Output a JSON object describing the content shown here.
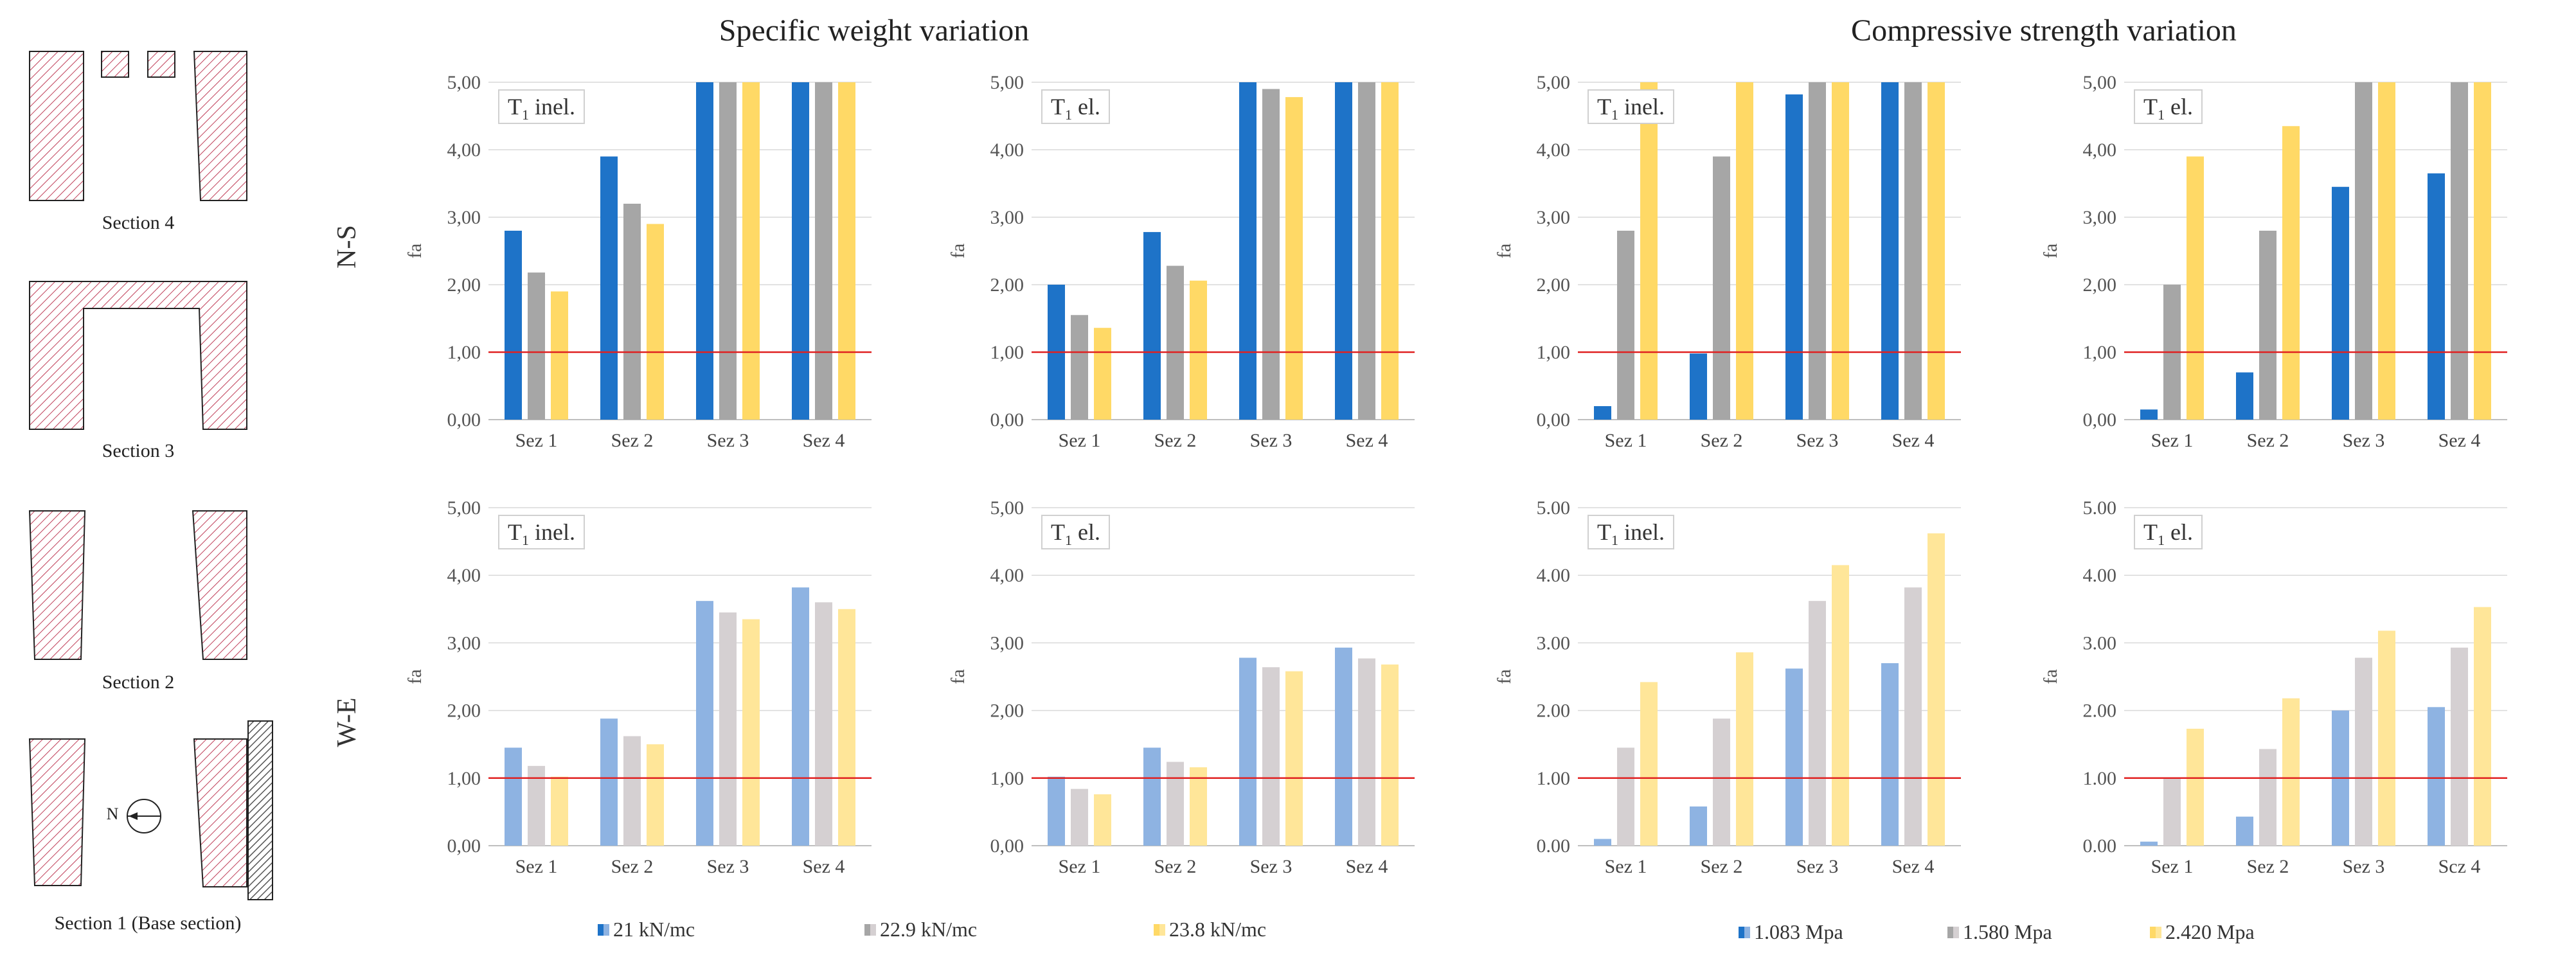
{
  "group_titles": {
    "left": "Specific weight variation",
    "right": "Compressive strength variation"
  },
  "row_labels": {
    "top": "N-S",
    "bottom": "W-E"
  },
  "section_labels": [
    "Section 4",
    "Section 3",
    "Section 2",
    "Section 1 (Base section)"
  ],
  "compass_letter": "N",
  "legends": {
    "weight": [
      "21 kN/mc",
      "22.9 kN/mc",
      "23.8 kN/mc"
    ],
    "strength": [
      "1.083 Mpa",
      "1.580 Mpa",
      "2.420 Mpa"
    ]
  },
  "colors": {
    "ns": [
      "#1e73c8",
      "#a6a6a6",
      "#ffd966"
    ],
    "we": [
      "#8eb3e2",
      "#d5d0d2",
      "#ffe699"
    ],
    "threshold": "#e02020",
    "hatch": "#c0405a"
  },
  "chart_data": [
    {
      "type": "bar",
      "panel": "ns-weight-inel",
      "tag_main": "T",
      "tag_sub": "1",
      "tag_rest": " inel.",
      "ylabel": "fa",
      "ylim": [
        0,
        5
      ],
      "yticks": [
        "0,00",
        "1,00",
        "2,00",
        "3,00",
        "4,00",
        "5,00"
      ],
      "categories": [
        "Sez 1",
        "Sez 2",
        "Sez 3",
        "Sez 4"
      ],
      "threshold": 1,
      "series": [
        {
          "name": "21 kN/mc",
          "values": [
            2.8,
            3.9,
            5.0,
            5.0
          ]
        },
        {
          "name": "22.9 kN/mc",
          "values": [
            2.18,
            3.2,
            5.0,
            5.0
          ]
        },
        {
          "name": "23.8 kN/mc",
          "values": [
            1.9,
            2.9,
            5.0,
            5.0
          ]
        }
      ]
    },
    {
      "type": "bar",
      "panel": "ns-weight-el",
      "tag_main": "T",
      "tag_sub": "1",
      "tag_rest": " el.",
      "ylabel": "fa",
      "ylim": [
        0,
        5
      ],
      "yticks": [
        "0,00",
        "1,00",
        "2,00",
        "3,00",
        "4,00",
        "5,00"
      ],
      "categories": [
        "Sez 1",
        "Sez 2",
        "Sez 3",
        "Sez 4"
      ],
      "threshold": 1,
      "series": [
        {
          "name": "21 kN/mc",
          "values": [
            2.0,
            2.78,
            5.0,
            5.0
          ]
        },
        {
          "name": "22.9 kN/mc",
          "values": [
            1.55,
            2.28,
            4.9,
            5.0
          ]
        },
        {
          "name": "23.8 kN/mc",
          "values": [
            1.36,
            2.06,
            4.78,
            5.0
          ]
        }
      ]
    },
    {
      "type": "bar",
      "panel": "ns-strength-inel",
      "tag_main": "T",
      "tag_sub": "1",
      "tag_rest": " inel.",
      "ylabel": "fa",
      "ylim": [
        0,
        5
      ],
      "yticks": [
        "0,00",
        "1,00",
        "2,00",
        "3,00",
        "4,00",
        "5,00"
      ],
      "categories": [
        "Sez 1",
        "Sez 2",
        "Sez 3",
        "Sez 4"
      ],
      "threshold": 1,
      "series": [
        {
          "name": "1.083 Mpa",
          "values": [
            0.2,
            0.98,
            4.82,
            5.0
          ]
        },
        {
          "name": "1.580 Mpa",
          "values": [
            2.8,
            3.9,
            5.0,
            5.0
          ]
        },
        {
          "name": "2.420 Mpa",
          "values": [
            5.0,
            5.0,
            5.0,
            5.0
          ]
        }
      ]
    },
    {
      "type": "bar",
      "panel": "ns-strength-el",
      "tag_main": "T",
      "tag_sub": "1",
      "tag_rest": " el.",
      "ylabel": "fa",
      "ylim": [
        0,
        5
      ],
      "yticks": [
        "0,00",
        "1,00",
        "2,00",
        "3,00",
        "4,00",
        "5,00"
      ],
      "categories": [
        "Sez 1",
        "Sez 2",
        "Sez 3",
        "Sez 4"
      ],
      "threshold": 1,
      "series": [
        {
          "name": "1.083 Mpa",
          "values": [
            0.15,
            0.7,
            3.45,
            3.65
          ]
        },
        {
          "name": "1.580 Mpa",
          "values": [
            2.0,
            2.8,
            5.0,
            5.0
          ]
        },
        {
          "name": "2.420 Mpa",
          "values": [
            3.9,
            4.35,
            5.0,
            5.0
          ]
        }
      ]
    },
    {
      "type": "bar",
      "panel": "we-weight-inel",
      "tag_main": "T",
      "tag_sub": "1",
      "tag_rest": " inel.",
      "ylabel": "fa",
      "ylim": [
        0,
        5
      ],
      "yticks": [
        "0,00",
        "1,00",
        "2,00",
        "3,00",
        "4,00",
        "5,00"
      ],
      "categories": [
        "Sez 1",
        "Sez 2",
        "Sez 3",
        "Sez 4"
      ],
      "threshold": 1,
      "series": [
        {
          "name": "21 kN/mc",
          "values": [
            1.45,
            1.88,
            3.62,
            3.82
          ]
        },
        {
          "name": "22.9 kN/mc",
          "values": [
            1.18,
            1.62,
            3.45,
            3.6
          ]
        },
        {
          "name": "23.8 kN/mc",
          "values": [
            1.02,
            1.5,
            3.35,
            3.5
          ]
        }
      ]
    },
    {
      "type": "bar",
      "panel": "we-weight-el",
      "tag_main": "T",
      "tag_sub": "1",
      "tag_rest": " el.",
      "ylabel": "fa",
      "ylim": [
        0,
        5
      ],
      "yticks": [
        "0,00",
        "1,00",
        "2,00",
        "3,00",
        "4,00",
        "5,00"
      ],
      "categories": [
        "Sez 1",
        "Sez 2",
        "Sez 3",
        "Sez 4"
      ],
      "threshold": 1,
      "series": [
        {
          "name": "21 kN/mc",
          "values": [
            1.02,
            1.45,
            2.78,
            2.93
          ]
        },
        {
          "name": "22.9 kN/mc",
          "values": [
            0.84,
            1.24,
            2.64,
            2.77
          ]
        },
        {
          "name": "23.8 kN/mc",
          "values": [
            0.76,
            1.16,
            2.58,
            2.68
          ]
        }
      ]
    },
    {
      "type": "bar",
      "panel": "we-strength-inel",
      "tag_main": "T",
      "tag_sub": "1",
      "tag_rest": " inel.",
      "ylabel": "fa",
      "ylim": [
        0,
        5
      ],
      "yticks": [
        "0.00",
        "1.00",
        "2.00",
        "3.00",
        "4.00",
        "5.00"
      ],
      "categories": [
        "Sez 1",
        "Sez 2",
        "Sez 3",
        "Sez 4"
      ],
      "threshold": 1,
      "series": [
        {
          "name": "1.083 Mpa",
          "values": [
            0.1,
            0.58,
            2.62,
            2.7
          ]
        },
        {
          "name": "1.580 Mpa",
          "values": [
            1.45,
            1.88,
            3.62,
            3.82
          ]
        },
        {
          "name": "2.420 Mpa",
          "values": [
            2.42,
            2.86,
            4.15,
            4.62
          ]
        }
      ]
    },
    {
      "type": "bar",
      "panel": "we-strength-el",
      "tag_main": "T",
      "tag_sub": "1",
      "tag_rest": " el.",
      "ylabel": "fa",
      "ylim": [
        0,
        5
      ],
      "yticks": [
        "0.00",
        "1.00",
        "2.00",
        "3.00",
        "4.00",
        "5.00"
      ],
      "categories": [
        "Sez 1",
        "Sez 2",
        "Sez 3",
        "Scz 4"
      ],
      "threshold": 1,
      "series": [
        {
          "name": "1.083 Mpa",
          "values": [
            0.06,
            0.43,
            2.0,
            2.05
          ]
        },
        {
          "name": "1.580 Mpa",
          "values": [
            1.0,
            1.43,
            2.78,
            2.93
          ]
        },
        {
          "name": "2.420 Mpa",
          "values": [
            1.73,
            2.18,
            3.18,
            3.53
          ]
        }
      ]
    }
  ]
}
